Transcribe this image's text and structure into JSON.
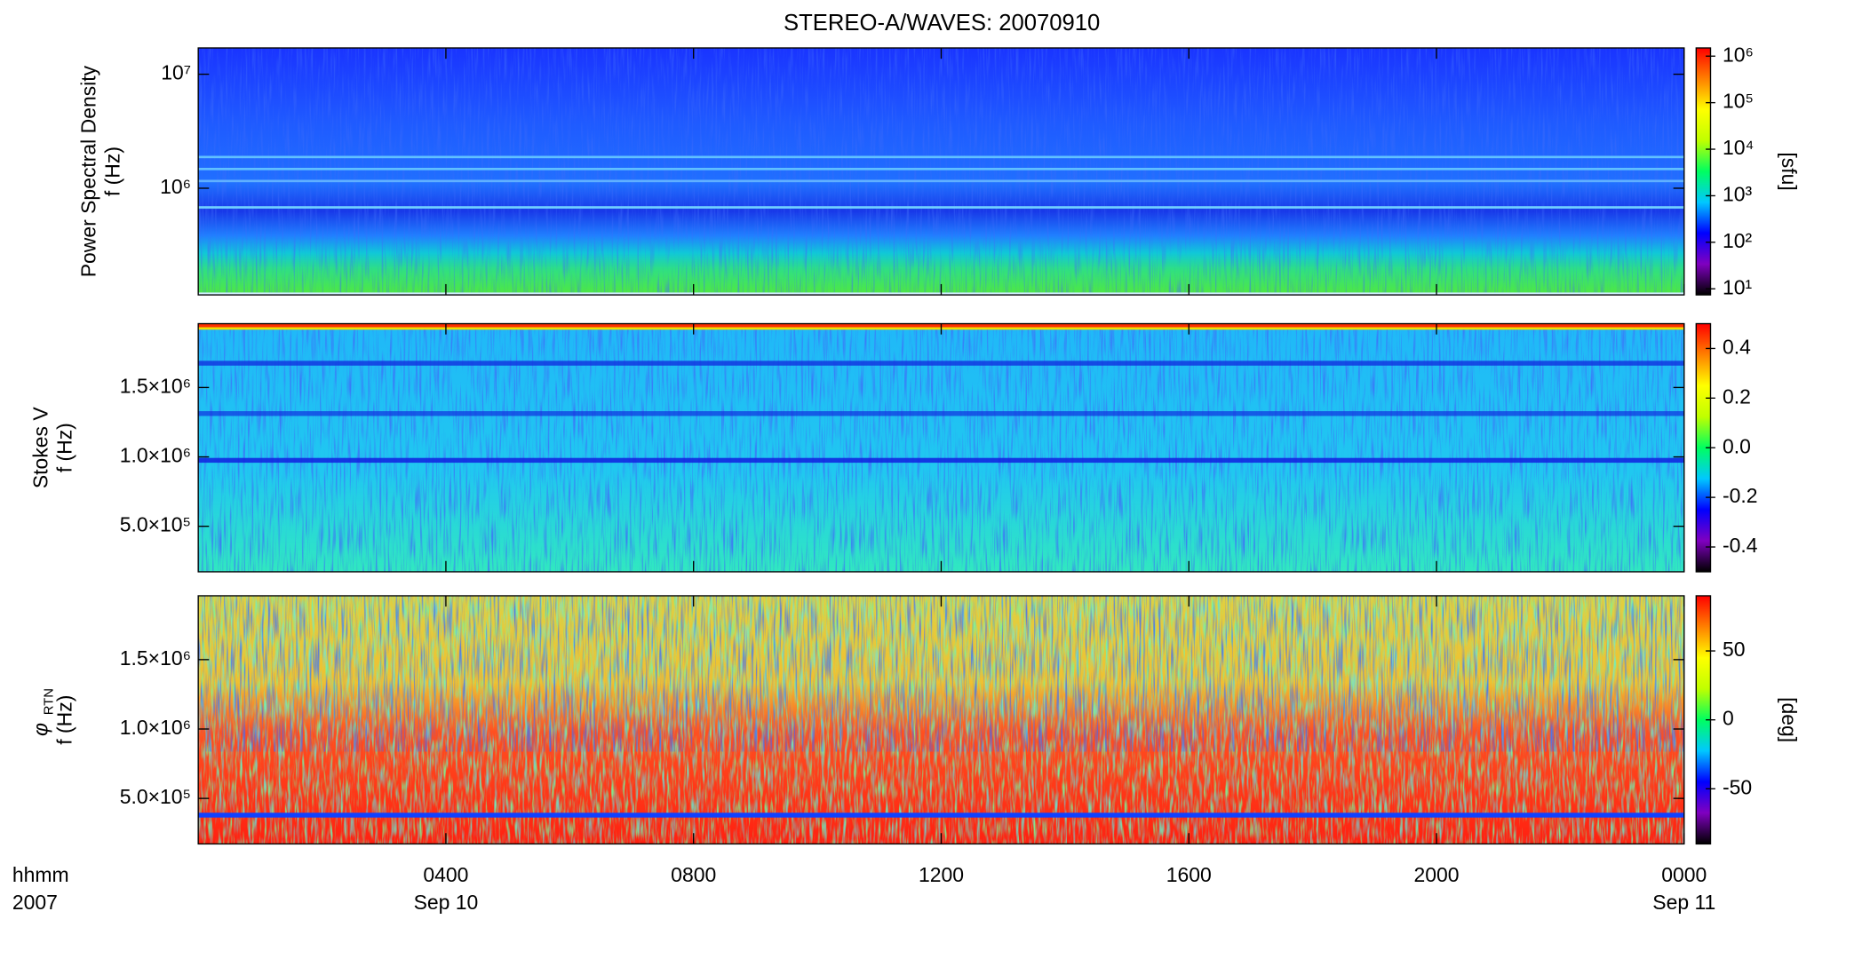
{
  "title": "STEREO-A/WAVES: 20070910",
  "colormap": [
    "#000000",
    "#8000c0",
    "#0000ff",
    "#00c8ff",
    "#00ff60",
    "#c0ff00",
    "#ffff00",
    "#ff8000",
    "#ff0000"
  ],
  "x_axis": {
    "xlim": [
      0,
      24
    ],
    "xticks": [
      {
        "value": 4,
        "label": "0400"
      },
      {
        "value": 8,
        "label": "0800"
      },
      {
        "value": 12,
        "label": "1200"
      },
      {
        "value": 16,
        "label": "1600"
      },
      {
        "value": 20,
        "label": "2000"
      },
      {
        "value": 24,
        "label": "0000"
      }
    ],
    "dates": [
      {
        "value": 4,
        "label": "Sep 10"
      },
      {
        "value": 24,
        "label": "Sep 11"
      }
    ],
    "xlabel": "hhmm",
    "year": "2007"
  },
  "chart_data": [
    {
      "type": "spectrogram",
      "ylabel": "Power Spectral Density",
      "ylabel2": "f (Hz)",
      "ylog": true,
      "ylim": [
        116000,
        17000000
      ],
      "yticks": [
        {
          "value": 1000000,
          "label": "10⁶"
        },
        {
          "value": 10000000,
          "label": "10⁷"
        }
      ],
      "clog": true,
      "clim": [
        7.4,
        1500000
      ],
      "cticks": [
        {
          "value": 10,
          "label": "10¹"
        },
        {
          "value": 100,
          "label": "10²"
        },
        {
          "value": 1000,
          "label": "10³"
        },
        {
          "value": 10000,
          "label": "10⁴"
        },
        {
          "value": 100000,
          "label": "10⁵"
        },
        {
          "value": 1000000,
          "label": "10⁶"
        }
      ],
      "clabel": "[sfu]"
    },
    {
      "type": "spectrogram",
      "ylabel": "Stokes V",
      "ylabel2": "f (Hz)",
      "ylog": false,
      "ylim": [
        172000,
        1960000
      ],
      "yticks": [
        {
          "value": 500000,
          "label": "5.0×10⁵"
        },
        {
          "value": 1000000,
          "label": "1.0×10⁶"
        },
        {
          "value": 1500000,
          "label": "1.5×10⁶"
        }
      ],
      "clog": false,
      "clim": [
        -0.5,
        0.5
      ],
      "cticks": [
        -0.4,
        -0.2,
        {
          "value": 0,
          "label": "0.0"
        },
        0.2,
        0.4
      ]
    },
    {
      "type": "spectrogram",
      "ylabel": "φ",
      "ylabel_sub": "RTN",
      "ylabel2": "f (Hz)",
      "ylog": false,
      "ylim": [
        172000,
        1960000
      ],
      "yticks": [
        {
          "value": 500000,
          "label": "5.0×10⁵"
        },
        {
          "value": 1000000,
          "label": "1.0×10⁶"
        },
        {
          "value": 1500000,
          "label": "1.5×10⁶"
        }
      ],
      "clog": false,
      "clim": [
        -90,
        90
      ],
      "cticks": [
        -50,
        0,
        50
      ],
      "clabel": "[deg]"
    }
  ]
}
